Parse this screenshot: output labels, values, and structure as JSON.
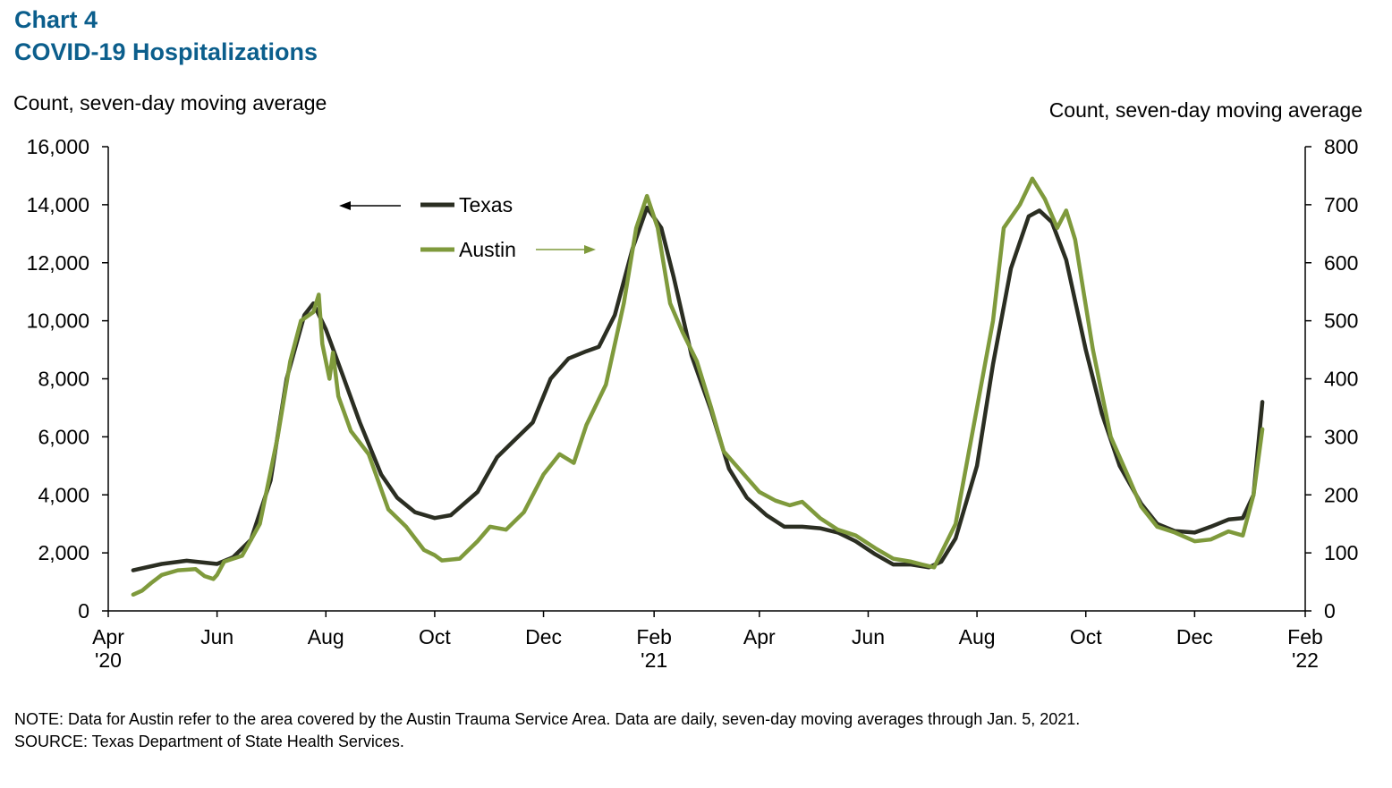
{
  "chart_number": "Chart 4",
  "title": "COVID-19 Hospitalizations",
  "notes": {
    "note": "NOTE: Data for Austin refer to the area covered by the Austin Trauma Service Area. Data are daily, seven-day moving averages through Jan. 5, 2021.",
    "source": "SOURCE: Texas Department of State Health Services."
  },
  "colors": {
    "texas": "#2b2e22",
    "austin": "#7f9a3c",
    "title": "#0b5e8c"
  },
  "chart_data": {
    "type": "line",
    "title": "COVID-19 Hospitalizations",
    "ylabel_left": "Count, seven-day moving average",
    "ylabel_right": "Count, seven-day moving average",
    "ylim_left": [
      0,
      16000
    ],
    "ylim_right": [
      0,
      800
    ],
    "yticks_left": [
      "0",
      "2,000",
      "4,000",
      "6,000",
      "8,000",
      "10,000",
      "12,000",
      "14,000",
      "16,000"
    ],
    "yticks_right": [
      "0",
      "100",
      "200",
      "300",
      "400",
      "500",
      "600",
      "700",
      "800"
    ],
    "xlim": [
      "2020-04-01",
      "2022-02-01"
    ],
    "xticks": [
      {
        "date": "2020-04-01",
        "label": "Apr",
        "year": "'20"
      },
      {
        "date": "2020-06-01",
        "label": "Jun",
        "year": ""
      },
      {
        "date": "2020-08-01",
        "label": "Aug",
        "year": ""
      },
      {
        "date": "2020-10-01",
        "label": "Oct",
        "year": ""
      },
      {
        "date": "2020-12-01",
        "label": "Dec",
        "year": ""
      },
      {
        "date": "2021-02-01",
        "label": "Feb",
        "year": "'21"
      },
      {
        "date": "2021-04-01",
        "label": "Apr",
        "year": ""
      },
      {
        "date": "2021-06-01",
        "label": "Jun",
        "year": ""
      },
      {
        "date": "2021-08-01",
        "label": "Aug",
        "year": ""
      },
      {
        "date": "2021-10-01",
        "label": "Oct",
        "year": ""
      },
      {
        "date": "2021-12-01",
        "label": "Dec",
        "year": ""
      },
      {
        "date": "2022-02-01",
        "label": "Feb",
        "year": "'22"
      }
    ],
    "legend": {
      "placement": "top-left",
      "texas_arrow": "left",
      "austin_arrow": "right"
    },
    "grid": false,
    "series": [
      {
        "name": "Texas",
        "axis": "left",
        "points": [
          [
            "2020-04-15",
            1400
          ],
          [
            "2020-05-01",
            1620
          ],
          [
            "2020-05-15",
            1730
          ],
          [
            "2020-06-01",
            1620
          ],
          [
            "2020-06-10",
            1850
          ],
          [
            "2020-06-20",
            2450
          ],
          [
            "2020-07-01",
            4500
          ],
          [
            "2020-07-10",
            8000
          ],
          [
            "2020-07-20",
            10200
          ],
          [
            "2020-07-25",
            10600
          ],
          [
            "2020-08-01",
            9700
          ],
          [
            "2020-08-10",
            8200
          ],
          [
            "2020-08-20",
            6500
          ],
          [
            "2020-09-01",
            4700
          ],
          [
            "2020-09-10",
            3900
          ],
          [
            "2020-09-20",
            3400
          ],
          [
            "2020-10-01",
            3200
          ],
          [
            "2020-10-10",
            3300
          ],
          [
            "2020-10-25",
            4100
          ],
          [
            "2020-11-05",
            5300
          ],
          [
            "2020-11-15",
            5900
          ],
          [
            "2020-11-25",
            6500
          ],
          [
            "2020-12-05",
            8000
          ],
          [
            "2020-12-15",
            8700
          ],
          [
            "2020-12-25",
            8950
          ],
          [
            "2021-01-01",
            9100
          ],
          [
            "2021-01-10",
            10200
          ],
          [
            "2021-01-20",
            12500
          ],
          [
            "2021-01-28",
            13900
          ],
          [
            "2021-02-05",
            13200
          ],
          [
            "2021-02-12",
            11500
          ],
          [
            "2021-02-22",
            8800
          ],
          [
            "2021-03-05",
            6900
          ],
          [
            "2021-03-15",
            4900
          ],
          [
            "2021-03-25",
            3900
          ],
          [
            "2021-04-05",
            3300
          ],
          [
            "2021-04-15",
            2900
          ],
          [
            "2021-04-25",
            2900
          ],
          [
            "2021-05-05",
            2850
          ],
          [
            "2021-05-15",
            2700
          ],
          [
            "2021-05-25",
            2400
          ],
          [
            "2021-06-05",
            1950
          ],
          [
            "2021-06-15",
            1600
          ],
          [
            "2021-06-25",
            1600
          ],
          [
            "2021-07-05",
            1500
          ],
          [
            "2021-07-12",
            1700
          ],
          [
            "2021-07-20",
            2500
          ],
          [
            "2021-08-01",
            5000
          ],
          [
            "2021-08-10",
            8500
          ],
          [
            "2021-08-20",
            11800
          ],
          [
            "2021-08-30",
            13600
          ],
          [
            "2021-09-05",
            13800
          ],
          [
            "2021-09-12",
            13400
          ],
          [
            "2021-09-20",
            12100
          ],
          [
            "2021-10-01",
            9000
          ],
          [
            "2021-10-10",
            6800
          ],
          [
            "2021-10-20",
            5000
          ],
          [
            "2021-11-01",
            3700
          ],
          [
            "2021-11-10",
            3000
          ],
          [
            "2021-11-20",
            2750
          ],
          [
            "2021-12-01",
            2700
          ],
          [
            "2021-12-10",
            2900
          ],
          [
            "2021-12-20",
            3150
          ],
          [
            "2021-12-28",
            3200
          ],
          [
            "2022-01-03",
            4000
          ],
          [
            "2022-01-08",
            7200
          ]
        ]
      },
      {
        "name": "Austin",
        "axis": "right",
        "points": [
          [
            "2020-04-15",
            28
          ],
          [
            "2020-04-20",
            35
          ],
          [
            "2020-04-25",
            48
          ],
          [
            "2020-05-01",
            62
          ],
          [
            "2020-05-10",
            70
          ],
          [
            "2020-05-20",
            72
          ],
          [
            "2020-05-25",
            60
          ],
          [
            "2020-05-30",
            55
          ],
          [
            "2020-06-01",
            62
          ],
          [
            "2020-06-05",
            85
          ],
          [
            "2020-06-15",
            95
          ],
          [
            "2020-06-25",
            150
          ],
          [
            "2020-07-05",
            300
          ],
          [
            "2020-07-12",
            430
          ],
          [
            "2020-07-18",
            500
          ],
          [
            "2020-07-25",
            515
          ],
          [
            "2020-07-28",
            545
          ],
          [
            "2020-07-30",
            460
          ],
          [
            "2020-08-03",
            400
          ],
          [
            "2020-08-05",
            445
          ],
          [
            "2020-08-08",
            370
          ],
          [
            "2020-08-15",
            310
          ],
          [
            "2020-08-25",
            270
          ],
          [
            "2020-09-05",
            175
          ],
          [
            "2020-09-15",
            145
          ],
          [
            "2020-09-25",
            105
          ],
          [
            "2020-10-01",
            96
          ],
          [
            "2020-10-05",
            87
          ],
          [
            "2020-10-15",
            90
          ],
          [
            "2020-10-25",
            120
          ],
          [
            "2020-11-01",
            145
          ],
          [
            "2020-11-10",
            140
          ],
          [
            "2020-11-20",
            170
          ],
          [
            "2020-12-01",
            235
          ],
          [
            "2020-12-10",
            270
          ],
          [
            "2020-12-18",
            255
          ],
          [
            "2020-12-25",
            320
          ],
          [
            "2021-01-05",
            390
          ],
          [
            "2021-01-15",
            530
          ],
          [
            "2021-01-22",
            660
          ],
          [
            "2021-01-28",
            715
          ],
          [
            "2021-02-03",
            660
          ],
          [
            "2021-02-10",
            530
          ],
          [
            "2021-02-17",
            480
          ],
          [
            "2021-02-25",
            430
          ],
          [
            "2021-03-05",
            350
          ],
          [
            "2021-03-12",
            275
          ],
          [
            "2021-03-22",
            240
          ],
          [
            "2021-04-01",
            205
          ],
          [
            "2021-04-10",
            190
          ],
          [
            "2021-04-18",
            182
          ],
          [
            "2021-04-25",
            188
          ],
          [
            "2021-05-05",
            160
          ],
          [
            "2021-05-15",
            140
          ],
          [
            "2021-05-25",
            130
          ],
          [
            "2021-06-05",
            108
          ],
          [
            "2021-06-15",
            90
          ],
          [
            "2021-06-25",
            85
          ],
          [
            "2021-07-01",
            80
          ],
          [
            "2021-07-08",
            75
          ],
          [
            "2021-07-20",
            150
          ],
          [
            "2021-08-01",
            350
          ],
          [
            "2021-08-10",
            500
          ],
          [
            "2021-08-16",
            660
          ],
          [
            "2021-08-25",
            700
          ],
          [
            "2021-09-01",
            745
          ],
          [
            "2021-09-08",
            710
          ],
          [
            "2021-09-15",
            660
          ],
          [
            "2021-09-20",
            690
          ],
          [
            "2021-09-25",
            640
          ],
          [
            "2021-10-05",
            450
          ],
          [
            "2021-10-15",
            300
          ],
          [
            "2021-10-25",
            230
          ],
          [
            "2021-11-01",
            180
          ],
          [
            "2021-11-10",
            145
          ],
          [
            "2021-11-20",
            135
          ],
          [
            "2021-12-01",
            120
          ],
          [
            "2021-12-10",
            123
          ],
          [
            "2021-12-20",
            137
          ],
          [
            "2021-12-28",
            130
          ],
          [
            "2022-01-03",
            200
          ],
          [
            "2022-01-08",
            313
          ]
        ]
      }
    ]
  }
}
